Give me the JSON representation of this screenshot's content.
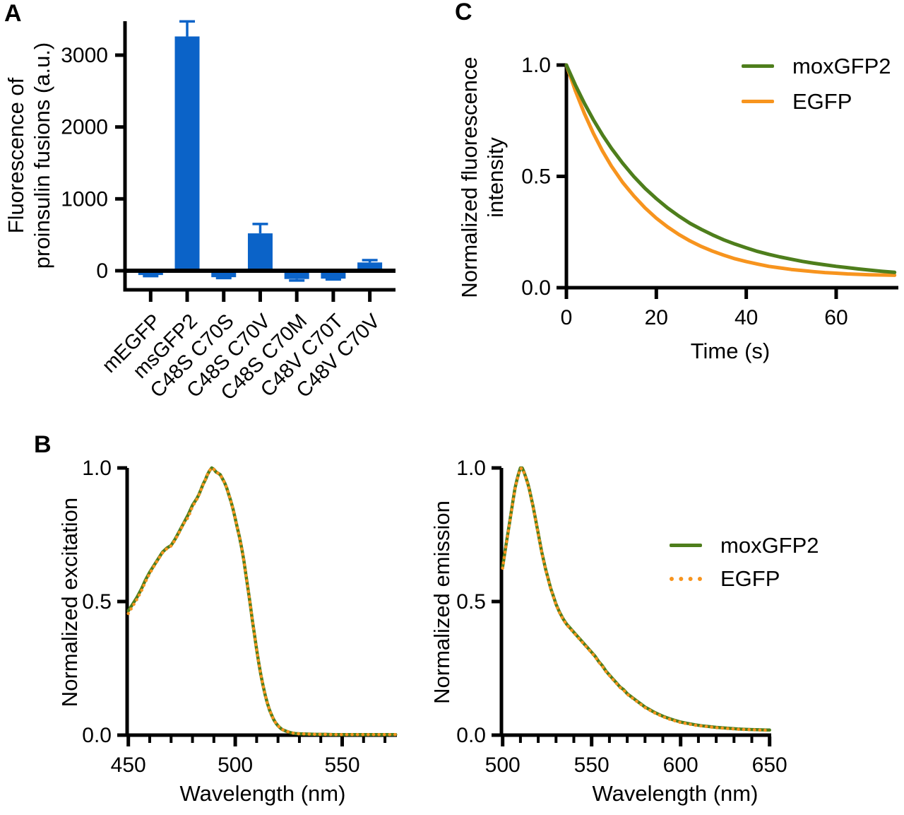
{
  "figure": {
    "background": "#ffffff",
    "panel_labels": {
      "a": "A",
      "b": "B",
      "c": "C"
    }
  },
  "colors": {
    "bar_blue": "#0B63C8",
    "mox_green": "#4E7E1C",
    "egfp_orange": "#F7941E",
    "axis_black": "#000000"
  },
  "chart_data": [
    {
      "id": "panel-a-proinsulin-fluorescence",
      "type": "bar",
      "title": "",
      "ylabel_lines": [
        "Fluorescence of",
        "proinsulin fusions (a.u.)"
      ],
      "xlabel": "",
      "categories": [
        "mEGFP",
        "msGFP2",
        "C48S C70S",
        "C48S C70V",
        "C48S C70M",
        "C48V C70T",
        "C48V C70V"
      ],
      "values": [
        -60,
        3260,
        -90,
        520,
        -115,
        -110,
        115
      ],
      "errors": [
        15,
        210,
        12,
        130,
        22,
        12,
        32
      ],
      "bar_color": "#0B63C8",
      "yticks": [
        0,
        1000,
        2000,
        3000
      ],
      "ytick_labels": [
        "0",
        "1000",
        "2000",
        "3000"
      ],
      "ylim": [
        -265,
        3475
      ],
      "grid": false
    },
    {
      "id": "panel-c-photobleaching-decay",
      "type": "line",
      "title": "",
      "xlabel": "Time (s)",
      "ylabel_lines": [
        "Normalized fluorescence",
        "intensity"
      ],
      "xticks": [
        0,
        20,
        40,
        60
      ],
      "xtick_labels": [
        "0",
        "20",
        "40",
        "60"
      ],
      "yticks": [
        0,
        0.5,
        1.0
      ],
      "ytick_labels": [
        "0.0",
        "0.5",
        "1.0"
      ],
      "xlim": [
        0,
        73.8
      ],
      "ylim": [
        0,
        1.0
      ],
      "grid": false,
      "legend_position": "top-right",
      "legend": [
        {
          "label": "moxGFP2",
          "style": "solid",
          "color": "#4E7E1C"
        },
        {
          "label": "EGFP",
          "style": "solid",
          "color": "#F7941E"
        }
      ],
      "x": [
        0,
        2,
        4,
        6,
        8,
        10,
        12.5,
        15,
        17.5,
        20,
        22.5,
        25,
        27.5,
        30,
        32.5,
        35,
        37.5,
        40,
        42.5,
        45,
        47.5,
        50,
        52.5,
        55,
        57.5,
        60,
        62.5,
        65,
        67.5,
        70,
        73
      ],
      "series": [
        {
          "name": "EGFP",
          "color": "#F7941E",
          "style": "solid",
          "values": [
            1.0,
            0.884,
            0.782,
            0.693,
            0.615,
            0.546,
            0.473,
            0.412,
            0.358,
            0.312,
            0.273,
            0.239,
            0.21,
            0.185,
            0.164,
            0.146,
            0.13,
            0.117,
            0.106,
            0.096,
            0.089,
            0.082,
            0.077,
            0.072,
            0.068,
            0.065,
            0.062,
            0.06,
            0.058,
            0.057,
            0.056
          ]
        },
        {
          "name": "moxGFP2",
          "color": "#4E7E1C",
          "style": "solid",
          "values": [
            1.0,
            0.91,
            0.828,
            0.754,
            0.687,
            0.626,
            0.559,
            0.499,
            0.446,
            0.4,
            0.358,
            0.322,
            0.289,
            0.262,
            0.237,
            0.215,
            0.196,
            0.179,
            0.163,
            0.15,
            0.138,
            0.128,
            0.118,
            0.11,
            0.103,
            0.096,
            0.09,
            0.084,
            0.079,
            0.074,
            0.069
          ]
        }
      ]
    },
    {
      "id": "panel-b-excitation-spectra",
      "type": "line",
      "title": "",
      "xlabel": "Wavelength (nm)",
      "ylabel": "Normalized excitation",
      "xticks": [
        450,
        500,
        550
      ],
      "xtick_labels": [
        "450",
        "500",
        "550"
      ],
      "xticks_minor": [
        460,
        470,
        480,
        490,
        510,
        520,
        530,
        540,
        560,
        570
      ],
      "yticks": [
        0,
        0.5,
        1.0
      ],
      "ytick_labels": [
        "0.0",
        "0.5",
        "1.0"
      ],
      "xlim": [
        450,
        575
      ],
      "ylim": [
        0,
        1.0
      ],
      "grid": false,
      "x": [
        450,
        452,
        454,
        456,
        458,
        460,
        462,
        464,
        466,
        468,
        470,
        472,
        474,
        476,
        478,
        480,
        482,
        483,
        484,
        485,
        486,
        487,
        488,
        489,
        490,
        491,
        492,
        493,
        494,
        495,
        496,
        497,
        498,
        499,
        500,
        501,
        502,
        503,
        504,
        505,
        506,
        507,
        508,
        509,
        510,
        511,
        512,
        513,
        514,
        515,
        516,
        517,
        518,
        519,
        520,
        521,
        522,
        524,
        526,
        528,
        530,
        534,
        538,
        542,
        546,
        550,
        555,
        560,
        565,
        570,
        575
      ],
      "series": [
        {
          "name": "moxGFP2",
          "color": "#4E7E1C",
          "style": "solid",
          "values": [
            0.465,
            0.49,
            0.515,
            0.545,
            0.58,
            0.61,
            0.635,
            0.66,
            0.685,
            0.7,
            0.71,
            0.735,
            0.765,
            0.795,
            0.825,
            0.86,
            0.885,
            0.9,
            0.92,
            0.94,
            0.955,
            0.975,
            0.99,
            1.0,
            0.995,
            0.985,
            0.98,
            0.975,
            0.96,
            0.945,
            0.925,
            0.9,
            0.875,
            0.845,
            0.81,
            0.775,
            0.74,
            0.7,
            0.655,
            0.6,
            0.545,
            0.49,
            0.43,
            0.375,
            0.32,
            0.27,
            0.225,
            0.185,
            0.15,
            0.12,
            0.095,
            0.075,
            0.058,
            0.045,
            0.035,
            0.027,
            0.021,
            0.014,
            0.009,
            0.006,
            0.005,
            0.004,
            0.003,
            0.003,
            0.002,
            0.002,
            0.002,
            0.002,
            0.002,
            0.002,
            0.002
          ]
        },
        {
          "name": "EGFP",
          "color": "#F7941E",
          "style": "dotted",
          "values": [
            0.455,
            0.482,
            0.508,
            0.538,
            0.574,
            0.605,
            0.632,
            0.658,
            0.682,
            0.698,
            0.708,
            0.732,
            0.762,
            0.793,
            0.815,
            0.855,
            0.882,
            0.898,
            0.918,
            0.938,
            0.955,
            0.975,
            0.99,
            1.0,
            0.995,
            0.985,
            0.98,
            0.975,
            0.96,
            0.945,
            0.925,
            0.9,
            0.875,
            0.845,
            0.81,
            0.775,
            0.74,
            0.7,
            0.655,
            0.6,
            0.545,
            0.49,
            0.43,
            0.375,
            0.32,
            0.27,
            0.225,
            0.185,
            0.15,
            0.12,
            0.095,
            0.075,
            0.058,
            0.045,
            0.035,
            0.027,
            0.021,
            0.014,
            0.009,
            0.006,
            0.005,
            0.004,
            0.003,
            0.003,
            0.002,
            0.002,
            0.002,
            0.002,
            0.002,
            0.002,
            0.002
          ]
        }
      ]
    },
    {
      "id": "panel-b-emission-spectra",
      "type": "line",
      "title": "",
      "xlabel": "Wavelength (nm)",
      "ylabel": "Normalized emission",
      "xticks": [
        500,
        550,
        600,
        650
      ],
      "xtick_labels": [
        "500",
        "550",
        "600",
        "650"
      ],
      "xticks_minor": [
        510,
        520,
        530,
        540,
        560,
        570,
        580,
        590,
        610,
        620,
        630,
        640
      ],
      "yticks": [
        0,
        0.5,
        1.0
      ],
      "ytick_labels": [
        "0.0",
        "0.5",
        "1.0"
      ],
      "xlim": [
        500,
        650
      ],
      "ylim": [
        0,
        1.0
      ],
      "grid": false,
      "legend_position": "middle-right",
      "legend": [
        {
          "label": "moxGFP2",
          "style": "solid",
          "color": "#4E7E1C"
        },
        {
          "label": "EGFP",
          "style": "dotted",
          "color": "#F7941E"
        }
      ],
      "x": [
        500,
        502,
        504,
        506,
        507,
        508,
        509,
        510,
        511,
        512,
        513,
        514,
        515,
        516,
        517,
        518,
        519,
        520,
        521,
        522,
        523,
        524,
        525,
        526,
        527,
        528,
        529,
        530,
        532,
        534,
        536,
        538,
        540,
        542,
        544,
        546,
        548,
        550,
        552,
        554,
        556,
        558,
        560,
        562,
        564,
        566,
        568,
        570,
        572,
        574,
        576,
        578,
        580,
        582,
        584,
        586,
        588,
        590,
        592,
        594,
        596,
        598,
        600,
        604,
        608,
        612,
        616,
        620,
        624,
        628,
        632,
        636,
        640,
        644,
        648,
        650
      ],
      "series": [
        {
          "name": "moxGFP2",
          "color": "#4E7E1C",
          "style": "solid",
          "values": [
            0.63,
            0.715,
            0.8,
            0.885,
            0.925,
            0.955,
            0.98,
            1.0,
            1.0,
            0.985,
            0.965,
            0.945,
            0.92,
            0.89,
            0.86,
            0.825,
            0.79,
            0.755,
            0.72,
            0.685,
            0.655,
            0.625,
            0.6,
            0.575,
            0.55,
            0.53,
            0.51,
            0.49,
            0.46,
            0.435,
            0.415,
            0.4,
            0.385,
            0.37,
            0.355,
            0.34,
            0.325,
            0.31,
            0.295,
            0.275,
            0.26,
            0.24,
            0.225,
            0.21,
            0.195,
            0.18,
            0.17,
            0.155,
            0.145,
            0.135,
            0.125,
            0.115,
            0.105,
            0.098,
            0.09,
            0.083,
            0.077,
            0.071,
            0.066,
            0.061,
            0.057,
            0.053,
            0.049,
            0.044,
            0.039,
            0.035,
            0.032,
            0.029,
            0.027,
            0.025,
            0.023,
            0.022,
            0.021,
            0.02,
            0.019,
            0.019
          ]
        },
        {
          "name": "EGFP",
          "color": "#F7941E",
          "style": "dotted",
          "values": [
            0.625,
            0.712,
            0.798,
            0.882,
            0.922,
            0.952,
            0.978,
            0.998,
            0.998,
            0.983,
            0.963,
            0.942,
            0.917,
            0.888,
            0.858,
            0.823,
            0.788,
            0.753,
            0.718,
            0.683,
            0.653,
            0.623,
            0.598,
            0.573,
            0.548,
            0.528,
            0.508,
            0.488,
            0.458,
            0.433,
            0.413,
            0.398,
            0.383,
            0.368,
            0.353,
            0.338,
            0.323,
            0.308,
            0.293,
            0.273,
            0.258,
            0.238,
            0.223,
            0.208,
            0.193,
            0.178,
            0.168,
            0.153,
            0.143,
            0.133,
            0.123,
            0.113,
            0.103,
            0.096,
            0.088,
            0.081,
            0.075,
            0.069,
            0.064,
            0.059,
            0.055,
            0.051,
            0.047,
            0.042,
            0.037,
            0.034,
            0.031,
            0.028,
            0.026,
            0.024,
            0.022,
            0.021,
            0.02,
            0.019,
            0.018,
            0.018
          ]
        }
      ]
    }
  ]
}
